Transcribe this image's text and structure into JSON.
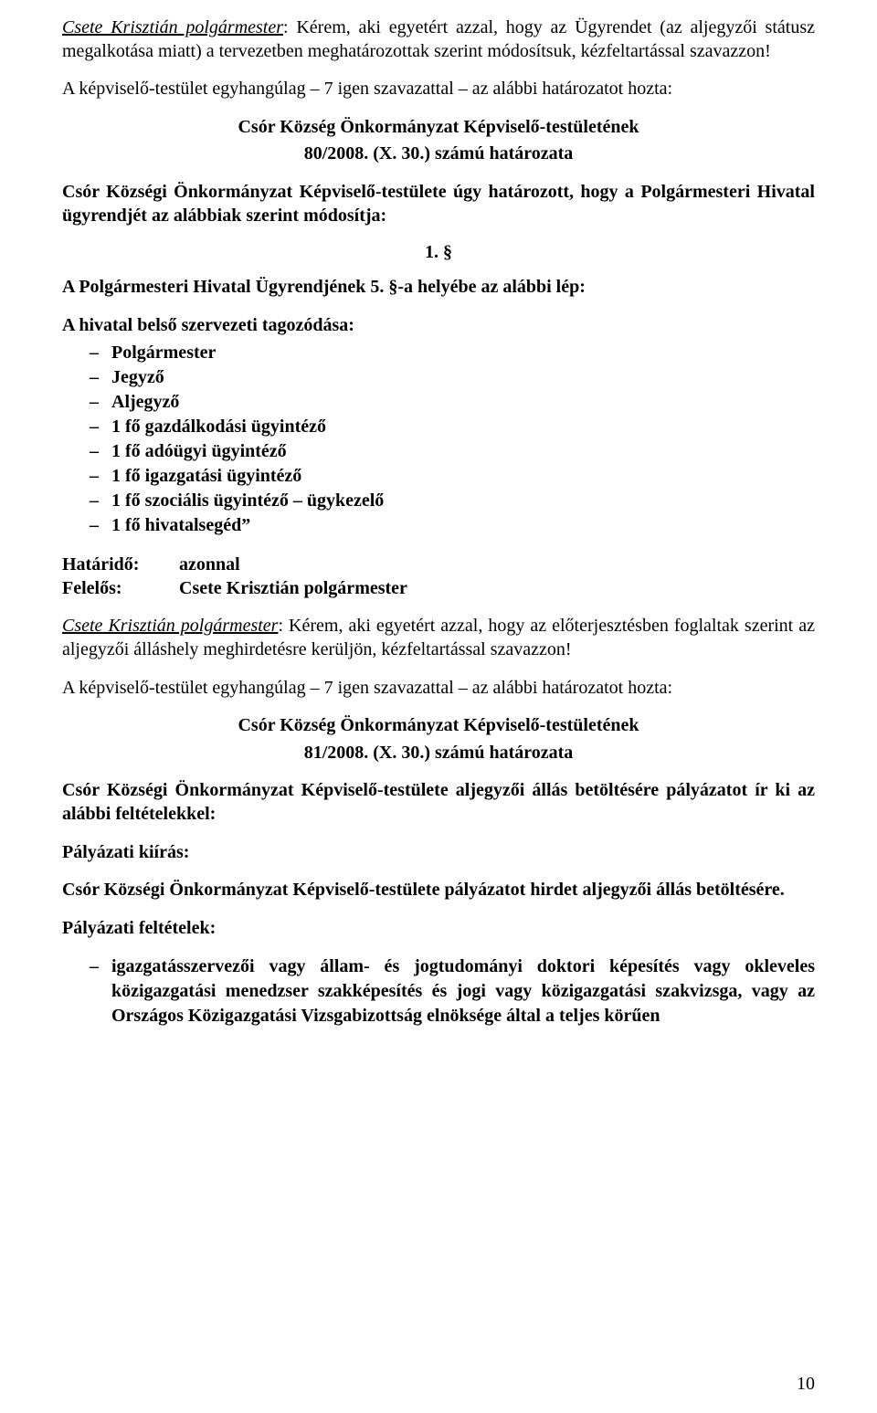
{
  "para1_part1": "Csete Krisztián polgármester",
  "para1_part2": ": Kérem, aki egyetért azzal, hogy az Ügyrendet (az aljegyzői stá­tusz megalkotása miatt) a tervezetben meghatározottak szerint módosítsuk, kézfeltartással szavazzon!",
  "para2": "A képviselő-testület egyhangúlag – 7 igen szavazattal – az alábbi határozatot hozta:",
  "res1_line1": "Csór Község Önkormányzat Képviselő-testületének",
  "res1_line2": "80/2008. (X. 30.) számú határozata",
  "para3": "Csór Községi Önkormányzat Képviselő-testülete úgy határozott, hogy a Polgármesteri Hivatal ügyrendjét az alábbiak szerint módosítja:",
  "section_num": "1. §",
  "para4": "A Polgármesteri Hivatal Ügyrendjének 5. §-a helyébe az alábbi lép:",
  "list1_lead": "A hivatal belső szervezeti tagozódása:",
  "list1": [
    "Polgármester",
    "Jegyző",
    "Aljegyző",
    "1 fő gazdálkodási ügyintéző",
    "1 fő adóügyi ügyintéző",
    "1 fő igazgatási ügyintéző",
    "1 fő szociális ügyintéző – ügykezelő",
    "1 fő hivatalsegéd”"
  ],
  "kv1": {
    "label": "Határidő:",
    "value": "azonnal"
  },
  "kv2": {
    "label": "Felelős:",
    "value": "Csete Krisztián polgármester"
  },
  "para5_part1": "Csete Krisztián polgármester",
  "para5_part2": ": Kérem, aki egyetért azzal, hogy az előterjesztésben foglaltak szerint az aljegyzői álláshely meghirdetésre kerüljön, kézfeltartással szavazzon!",
  "para6": "A képviselő-testület egyhangúlag – 7 igen szavazattal – az alábbi határozatot hozta:",
  "res2_line1": "Csór Község Önkormányzat Képviselő-testületének",
  "res2_line2": "81/2008. (X. 30.) számú határozata",
  "para7": "Csór Községi Önkormányzat Képviselő-testülete aljegyzői állás betöltésére pályázatot ír ki az alábbi feltételekkel:",
  "para8": "Pályázati kiírás:",
  "para9": "Csór Községi Önkormányzat Képviselő-testülete pályázatot hirdet aljegyzői állás betöl­tésére.",
  "para10": "Pályázati feltételek:",
  "list2": [
    "igazgatásszervezői vagy állam- és jogtudományi doktori képesítés vagy okleveles közigazgatási menedzser szakképesítés és jogi vagy közigazgatási szakvizsga, vagy az Országos Közigazgatási Vizsgabizottság elnöksége által a teljes körűen"
  ],
  "page_number": "10"
}
